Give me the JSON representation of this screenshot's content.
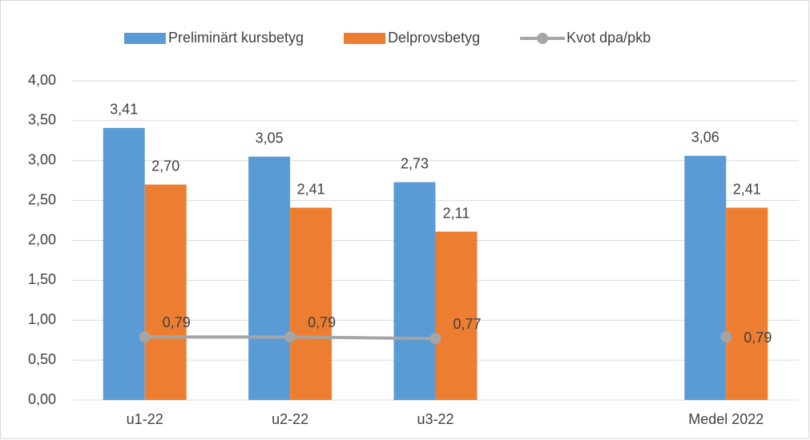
{
  "chart_data": {
    "type": "bar",
    "categories": [
      "u1-22",
      "u2-22",
      "u3-22",
      null,
      "Medel 2022"
    ],
    "series": [
      {
        "name": "Preliminärt kursbetyg",
        "color": "#5b9bd5",
        "values": [
          3.41,
          3.05,
          2.73,
          null,
          3.06
        ],
        "value_labels": [
          "3,41",
          "3,05",
          "2,73",
          null,
          "3,06"
        ]
      },
      {
        "name": "Delprovsbetyg",
        "color": "#ed7d31",
        "values": [
          2.7,
          2.41,
          2.11,
          null,
          2.41
        ],
        "value_labels": [
          "2,70",
          "2,41",
          "2,11",
          null,
          "2,41"
        ]
      },
      {
        "name": "Kvot dpa/pkb",
        "type": "line",
        "color": "#a5a5a5",
        "values": [
          0.79,
          0.79,
          0.77,
          null,
          0.79
        ],
        "value_labels": [
          "0,79",
          "0,79",
          "0,77",
          null,
          "0,79"
        ]
      }
    ],
    "ylim": [
      0,
      4
    ],
    "yticks": [
      {
        "value": 0,
        "label": "0,00"
      },
      {
        "value": 0.5,
        "label": "0,50"
      },
      {
        "value": 1,
        "label": "1,00"
      },
      {
        "value": 1.5,
        "label": "1,50"
      },
      {
        "value": 2,
        "label": "2,00"
      },
      {
        "value": 2.5,
        "label": "2,50"
      },
      {
        "value": 3,
        "label": "3,00"
      },
      {
        "value": 3.5,
        "label": "3,50"
      },
      {
        "value": 4,
        "label": "4,00"
      }
    ],
    "grid": true,
    "legend": "top"
  }
}
